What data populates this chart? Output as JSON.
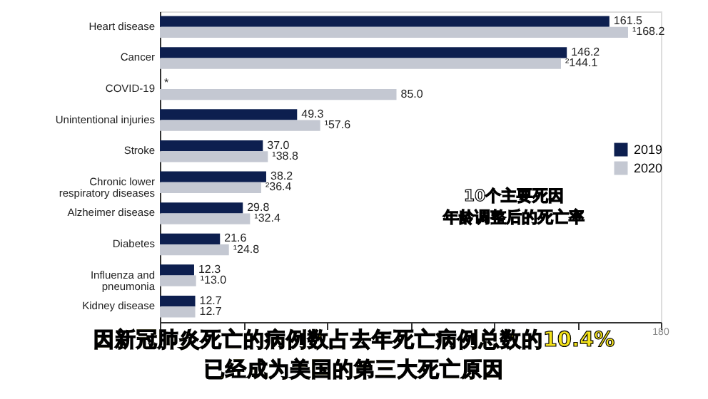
{
  "chart_data": {
    "type": "bar",
    "orientation": "horizontal",
    "categories": [
      "Heart disease",
      "Cancer",
      "COVID-19",
      "Unintentional injuries",
      "Stroke",
      "Chronic lower respiratory diseases",
      "Alzheimer disease",
      "Diabetes",
      "Influenza and pneumonia",
      "Kidney disease"
    ],
    "series": [
      {
        "name": "2019",
        "color": "#0d1f4f",
        "values": [
          161.5,
          146.2,
          null,
          49.3,
          37.0,
          38.2,
          29.8,
          21.6,
          12.3,
          12.7
        ],
        "value_labels": [
          "161.5",
          "146.2",
          "*",
          "49.3",
          "37.0",
          "38.2",
          "29.8",
          "21.6",
          "12.3",
          "12.7"
        ]
      },
      {
        "name": "2020",
        "color": "#c4c8d2",
        "values": [
          168.2,
          144.1,
          85.0,
          57.6,
          38.8,
          36.4,
          32.4,
          24.8,
          13.0,
          12.7
        ],
        "value_labels": [
          "¹168.2",
          "²144.1",
          "85.0",
          "¹57.6",
          "¹38.8",
          "²36.4",
          "¹32.4",
          "¹24.8",
          "¹13.0",
          "12.7"
        ]
      }
    ],
    "xlim": [
      0,
      180
    ],
    "xticks": [
      {
        "value": 0,
        "label": null
      },
      {
        "value": 30,
        "label": null
      },
      {
        "value": 60,
        "label": null
      },
      {
        "value": 90,
        "label": null
      },
      {
        "value": 120,
        "label": null
      },
      {
        "value": 150,
        "label": null
      },
      {
        "value": 180,
        "label": null
      }
    ],
    "grid": false,
    "legend": "right",
    "annotations": [
      "10个主要死因",
      "年龄调整后的死亡率",
      "因新冠肺炎死亡的病例数占去年死亡病例总数的10.4%",
      "已经成为美国的第三大死亡原因",
      "180"
    ]
  }
}
